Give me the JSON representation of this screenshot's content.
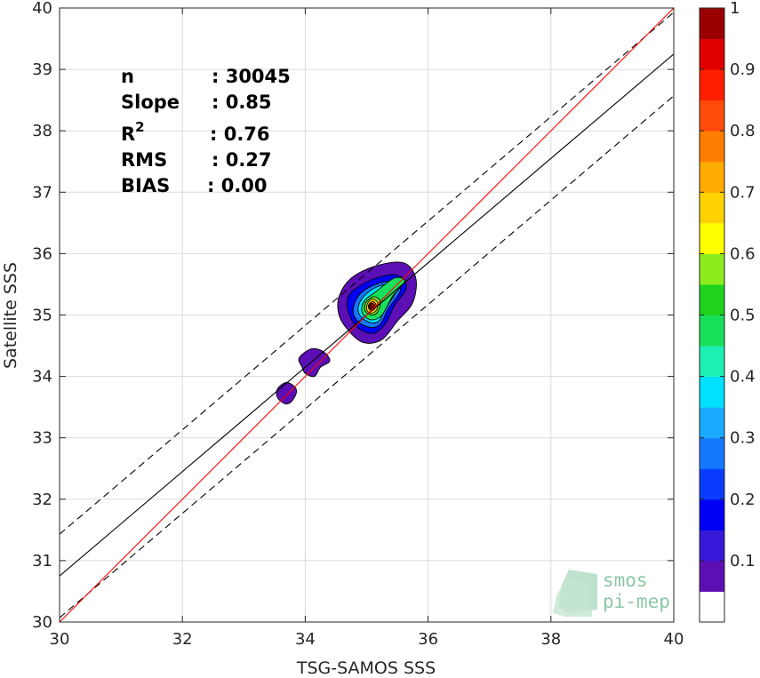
{
  "chart_data": {
    "type": "heatmap",
    "xlabel": "TSG-SAMOS SSS",
    "ylabel": "Satellite SSS",
    "xlim": [
      30,
      40
    ],
    "ylim": [
      30,
      40
    ],
    "xticks": [
      "30",
      "32",
      "34",
      "36",
      "38",
      "40"
    ],
    "yticks": [
      "30",
      "31",
      "32",
      "33",
      "34",
      "35",
      "36",
      "37",
      "38",
      "39",
      "40"
    ],
    "grid": true,
    "stats": [
      {
        "label": "n",
        "value": ": 30045"
      },
      {
        "label": "Slope",
        "value": ": 0.85"
      },
      {
        "label": "R",
        "sup": "2",
        "value": ": 0.76"
      },
      {
        "label": "RMS",
        "value": ": 0.27"
      },
      {
        "label": "BIAS",
        "value": ": 0.00"
      }
    ],
    "lines": {
      "identity": {
        "slope": 1.0,
        "intercept": 0.0,
        "color": "#ff0000"
      },
      "regression": {
        "slope": 0.85,
        "intercept": 5.25,
        "color": "#000000"
      },
      "upper_bound": {
        "slope": 0.85,
        "intercept": 5.93,
        "color": "#000000",
        "style": "dashed"
      },
      "lower_bound": {
        "slope": 0.85,
        "intercept": 4.57,
        "color": "#000000",
        "style": "dashed"
      }
    },
    "density_contours": [
      {
        "level": 0.05,
        "points": [
          [
            34.75,
            35.6
          ],
          [
            35.15,
            35.8
          ],
          [
            35.6,
            35.85
          ],
          [
            35.8,
            35.6
          ],
          [
            35.75,
            35.2
          ],
          [
            35.5,
            34.9
          ],
          [
            35.25,
            34.6
          ],
          [
            34.95,
            34.55
          ],
          [
            34.7,
            34.75
          ],
          [
            34.55,
            35.0
          ],
          [
            34.55,
            35.3
          ]
        ]
      },
      {
        "level": 0.05,
        "points": [
          [
            33.9,
            34.3
          ],
          [
            34.1,
            34.45
          ],
          [
            34.3,
            34.4
          ],
          [
            34.4,
            34.25
          ],
          [
            34.25,
            34.15
          ],
          [
            34.15,
            34.0
          ],
          [
            34.0,
            34.05
          ],
          [
            33.95,
            34.15
          ]
        ]
      },
      {
        "level": 0.05,
        "points": [
          [
            33.55,
            33.8
          ],
          [
            33.7,
            33.9
          ],
          [
            33.85,
            33.8
          ],
          [
            33.82,
            33.65
          ],
          [
            33.7,
            33.55
          ],
          [
            33.55,
            33.65
          ]
        ]
      },
      {
        "level": 0.15,
        "points": [
          [
            34.85,
            35.45
          ],
          [
            35.15,
            35.6
          ],
          [
            35.5,
            35.65
          ],
          [
            35.65,
            35.45
          ],
          [
            35.45,
            35.15
          ],
          [
            35.3,
            34.85
          ],
          [
            35.1,
            34.7
          ],
          [
            34.85,
            34.8
          ],
          [
            34.7,
            35.05
          ],
          [
            34.7,
            35.3
          ]
        ]
      },
      {
        "level": 0.25,
        "points": [
          [
            34.9,
            35.35
          ],
          [
            35.15,
            35.5
          ],
          [
            35.45,
            35.55
          ],
          [
            35.55,
            35.4
          ],
          [
            35.35,
            35.1
          ],
          [
            35.22,
            34.85
          ],
          [
            35.05,
            34.8
          ],
          [
            34.85,
            34.9
          ],
          [
            34.78,
            35.1
          ]
        ]
      },
      {
        "level": 0.35,
        "points": [
          [
            34.95,
            35.3
          ],
          [
            35.15,
            35.45
          ],
          [
            35.4,
            35.5
          ],
          [
            35.48,
            35.38
          ],
          [
            35.3,
            35.1
          ],
          [
            35.2,
            34.9
          ],
          [
            35.05,
            34.88
          ],
          [
            34.9,
            34.98
          ],
          [
            34.86,
            35.12
          ]
        ]
      },
      {
        "level": 0.45,
        "points": [
          [
            34.98,
            35.25
          ],
          [
            35.15,
            35.38
          ],
          [
            35.45,
            35.6
          ],
          [
            35.62,
            35.55
          ],
          [
            35.42,
            35.3
          ],
          [
            35.25,
            35.0
          ],
          [
            35.08,
            34.92
          ],
          [
            34.95,
            35.0
          ],
          [
            34.92,
            35.12
          ]
        ]
      },
      {
        "level": 0.55,
        "points": [
          [
            35.0,
            35.22
          ],
          [
            35.12,
            35.3
          ],
          [
            35.22,
            35.22
          ],
          [
            35.18,
            35.05
          ],
          [
            35.08,
            35.0
          ],
          [
            34.98,
            35.06
          ],
          [
            34.97,
            35.15
          ]
        ]
      },
      {
        "level": 0.65,
        "points": [
          [
            35.02,
            35.2
          ],
          [
            35.1,
            35.26
          ],
          [
            35.18,
            35.2
          ],
          [
            35.16,
            35.08
          ],
          [
            35.08,
            35.03
          ],
          [
            35.0,
            35.08
          ]
        ]
      },
      {
        "level": 0.75,
        "points": [
          [
            35.04,
            35.18
          ],
          [
            35.1,
            35.22
          ],
          [
            35.15,
            35.17
          ],
          [
            35.13,
            35.1
          ],
          [
            35.07,
            35.07
          ],
          [
            35.03,
            35.12
          ]
        ]
      },
      {
        "level": 0.85,
        "points": [
          [
            35.05,
            35.17
          ],
          [
            35.09,
            35.19
          ],
          [
            35.13,
            35.16
          ],
          [
            35.11,
            35.11
          ],
          [
            35.07,
            35.09
          ],
          [
            35.04,
            35.13
          ]
        ]
      },
      {
        "level": 0.95,
        "points": [
          [
            35.06,
            35.15
          ],
          [
            35.09,
            35.17
          ],
          [
            35.11,
            35.14
          ],
          [
            35.09,
            35.11
          ],
          [
            35.06,
            35.12
          ]
        ]
      }
    ],
    "colorbar": {
      "ticks": [
        "0.1",
        "0.2",
        "0.3",
        "0.4",
        "0.5",
        "0.6",
        "0.7",
        "0.8",
        "0.9",
        "1"
      ],
      "levels": [
        {
          "lo": 0.0,
          "hi": 0.05,
          "color": "#ffffff"
        },
        {
          "lo": 0.05,
          "hi": 0.1,
          "color": "#5b0fb5"
        },
        {
          "lo": 0.1,
          "hi": 0.15,
          "color": "#3618d8"
        },
        {
          "lo": 0.15,
          "hi": 0.2,
          "color": "#0000f5"
        },
        {
          "lo": 0.2,
          "hi": 0.25,
          "color": "#0a3cff"
        },
        {
          "lo": 0.25,
          "hi": 0.3,
          "color": "#1478ff"
        },
        {
          "lo": 0.3,
          "hi": 0.35,
          "color": "#19aaff"
        },
        {
          "lo": 0.35,
          "hi": 0.4,
          "color": "#00e1ff"
        },
        {
          "lo": 0.4,
          "hi": 0.45,
          "color": "#1ef0b4"
        },
        {
          "lo": 0.45,
          "hi": 0.5,
          "color": "#19e05a"
        },
        {
          "lo": 0.5,
          "hi": 0.55,
          "color": "#1ed21e"
        },
        {
          "lo": 0.55,
          "hi": 0.6,
          "color": "#8cec1e"
        },
        {
          "lo": 0.6,
          "hi": 0.65,
          "color": "#ffff00"
        },
        {
          "lo": 0.65,
          "hi": 0.7,
          "color": "#ffd200"
        },
        {
          "lo": 0.7,
          "hi": 0.75,
          "color": "#ffaa00"
        },
        {
          "lo": 0.75,
          "hi": 0.8,
          "color": "#ff7d00"
        },
        {
          "lo": 0.8,
          "hi": 0.85,
          "color": "#ff4b0a"
        },
        {
          "lo": 0.85,
          "hi": 0.9,
          "color": "#ff1e00"
        },
        {
          "lo": 0.9,
          "hi": 0.95,
          "color": "#e10000"
        },
        {
          "lo": 0.95,
          "hi": 1.0,
          "color": "#9b0000"
        }
      ]
    }
  },
  "logo": {
    "line1": "smos",
    "line2": "pi-mep",
    "color": "#8cc7a5"
  }
}
